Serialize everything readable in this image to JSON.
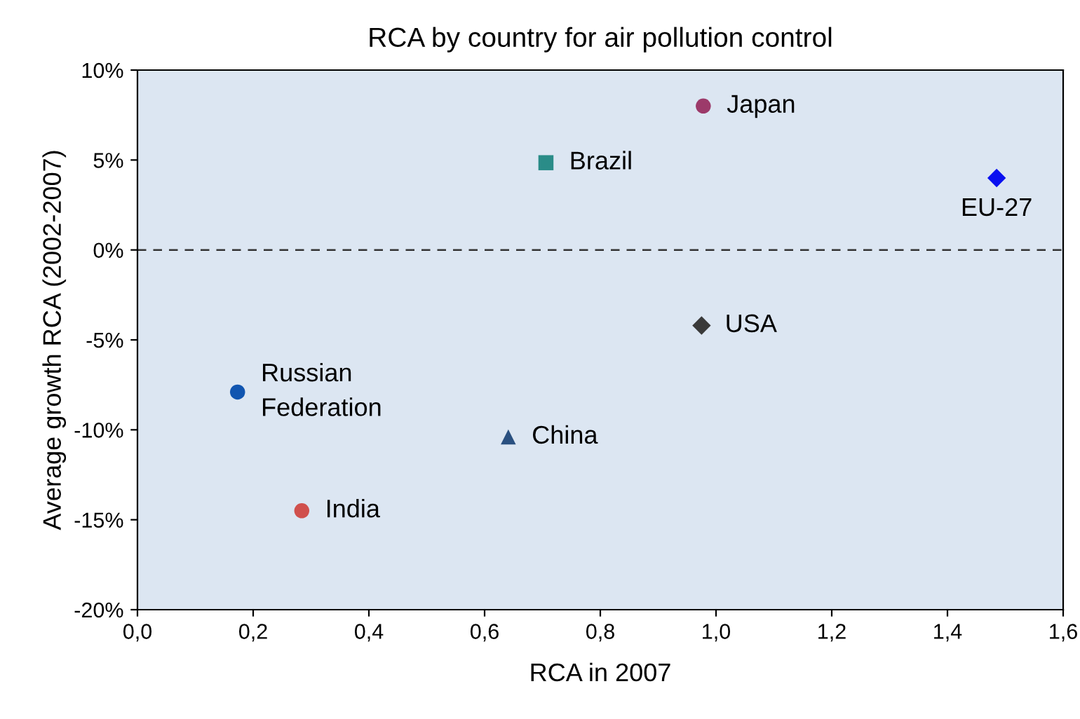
{
  "chart_data": {
    "type": "scatter",
    "title": "RCA by country for air pollution control",
    "xlabel": "RCA in 2007",
    "ylabel": "Average growth RCA (2002-2007)",
    "series": [
      {
        "name": "Russian\nFederation",
        "color": "#1155b0",
        "marker": "circle",
        "x": [
          0.173
        ],
        "values": [
          -7.9
        ]
      },
      {
        "name": "India",
        "color": "#d0504d",
        "marker": "circle",
        "x": [
          0.284
        ],
        "values": [
          -14.5
        ]
      },
      {
        "name": "China",
        "color": "#2a5080",
        "marker": "triangle",
        "x": [
          0.641
        ],
        "values": [
          -10.4
        ]
      },
      {
        "name": "Brazil",
        "color": "#2a8c88",
        "marker": "square",
        "x": [
          0.706
        ],
        "values": [
          4.85
        ]
      },
      {
        "name": "Japan",
        "color": "#9c3a6a",
        "marker": "circle",
        "x": [
          0.978
        ],
        "values": [
          8.0
        ]
      },
      {
        "name": "USA",
        "color": "#3a3a3a",
        "marker": "diamond",
        "x": [
          0.975
        ],
        "values": [
          -4.2
        ]
      },
      {
        "name": "EU-27",
        "color": "#0a10f0",
        "marker": "diamond",
        "x": [
          1.485
        ],
        "values": [
          4.0
        ]
      }
    ],
    "xlim": [
      0,
      1.6
    ],
    "xticks": [
      {
        "value": 0,
        "label": "0,0"
      },
      {
        "value": 0.2,
        "label": "0,2"
      },
      {
        "value": 0.4,
        "label": "0,4"
      },
      {
        "value": 0.6,
        "label": "0,6"
      },
      {
        "value": 0.8,
        "label": "0,8"
      },
      {
        "value": 1.0,
        "label": "1,0"
      },
      {
        "value": 1.2,
        "label": "1,2"
      },
      {
        "value": 1.4,
        "label": "1,4"
      },
      {
        "value": 1.6,
        "label": "1,6"
      }
    ],
    "ylim": [
      -20,
      10
    ],
    "yticks": [
      {
        "value": -20,
        "label": "-20%"
      },
      {
        "value": -15,
        "label": "-15%"
      },
      {
        "value": -10,
        "label": "-10%"
      },
      {
        "value": -5,
        "label": "-5%"
      },
      {
        "value": 0,
        "label": "0%"
      },
      {
        "value": 5,
        "label": "5%"
      },
      {
        "value": 10,
        "label": "10%"
      }
    ],
    "ref_lines": [
      {
        "axis": "y",
        "value": 0,
        "label": null,
        "color": "#333333",
        "line_style": "dashed"
      }
    ],
    "grid": false,
    "legend": false
  }
}
